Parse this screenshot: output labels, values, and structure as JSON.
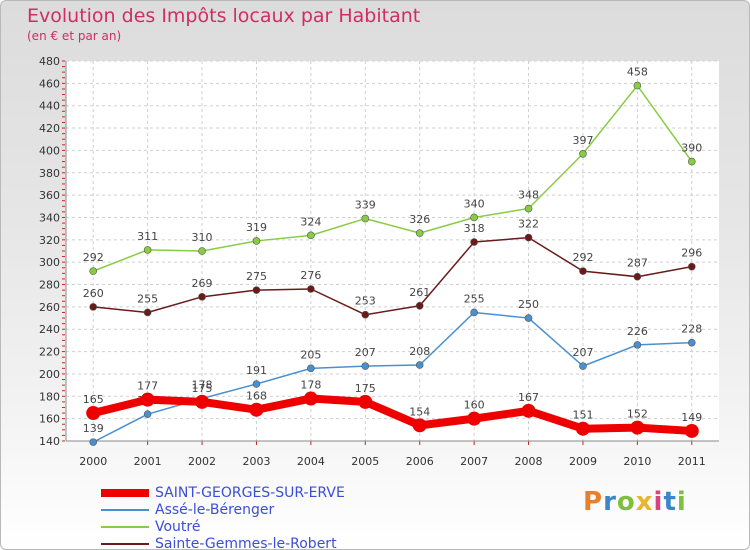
{
  "header": {
    "title": "Evolution des Impôts locaux par Habitant",
    "subtitle": "(en € et par an)"
  },
  "chart_data": {
    "type": "line",
    "title": "Evolution des Impôts locaux par Habitant",
    "subtitle": "(en € et par an)",
    "xlabel": "",
    "ylabel": "",
    "categories": [
      "2000",
      "2001",
      "2002",
      "2003",
      "2004",
      "2005",
      "2006",
      "2007",
      "2008",
      "2009",
      "2010",
      "2011"
    ],
    "ylim": [
      140,
      480
    ],
    "yticks": [
      140,
      160,
      180,
      200,
      220,
      240,
      260,
      280,
      300,
      320,
      340,
      360,
      380,
      400,
      420,
      440,
      460,
      480
    ],
    "grid": true,
    "legend_position": "bottom-left",
    "series": [
      {
        "name": "SAINT-GEORGES-SUR-ERVE",
        "color": "#ee0000",
        "values": [
          165,
          177,
          175,
          168,
          178,
          175,
          154,
          160,
          167,
          151,
          152,
          149
        ]
      },
      {
        "name": "Assé-le-Bérenger",
        "color": "#4a90d0",
        "values": [
          139,
          164,
          178,
          191,
          205,
          207,
          208,
          255,
          250,
          207,
          226,
          228
        ]
      },
      {
        "name": "Voutré",
        "color": "#88cc44",
        "values": [
          292,
          311,
          310,
          319,
          324,
          339,
          326,
          340,
          348,
          397,
          458,
          390
        ]
      },
      {
        "name": "Sainte-Gemmes-le-Robert",
        "color": "#6b1a1a",
        "values": [
          260,
          255,
          269,
          275,
          276,
          253,
          261,
          318,
          322,
          292,
          287,
          296
        ]
      }
    ]
  },
  "logo": {
    "letters": [
      "P",
      "r",
      "o",
      "x",
      "i",
      "t",
      "i"
    ],
    "colors": [
      "#e8802b",
      "#3a86c8",
      "#7fbf3f",
      "#e8b52b",
      "#d6457a",
      "#3a86c8",
      "#7fbf3f"
    ]
  }
}
